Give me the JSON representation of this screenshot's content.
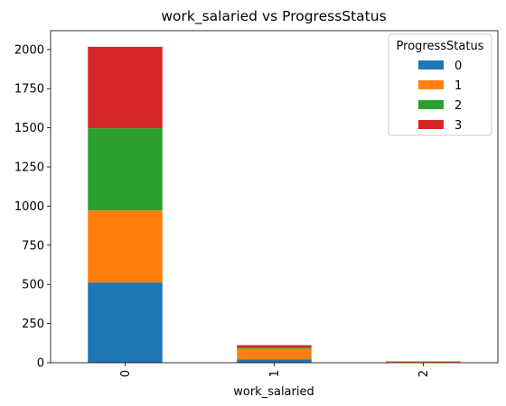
{
  "chart_data": {
    "type": "bar",
    "stacked": true,
    "title": "work_salaried vs ProgressStatus",
    "xlabel": "work_salaried",
    "ylabel": "",
    "categories": [
      "0",
      "1",
      "2"
    ],
    "ylim": [
      0,
      2120
    ],
    "yticks": [
      0,
      250,
      500,
      750,
      1000,
      1250,
      1500,
      1750,
      2000
    ],
    "grid": false,
    "legend": {
      "title": "ProgressStatus",
      "placement": "top-right"
    },
    "series": [
      {
        "name": "0",
        "color": "#1f77b4",
        "values": [
          512,
          22,
          2
        ]
      },
      {
        "name": "1",
        "color": "#ff7f0e",
        "values": [
          460,
          68,
          4
        ]
      },
      {
        "name": "2",
        "color": "#2ca02c",
        "values": [
          525,
          8,
          1
        ]
      },
      {
        "name": "3",
        "color": "#d62728",
        "values": [
          520,
          14,
          2
        ]
      }
    ]
  }
}
